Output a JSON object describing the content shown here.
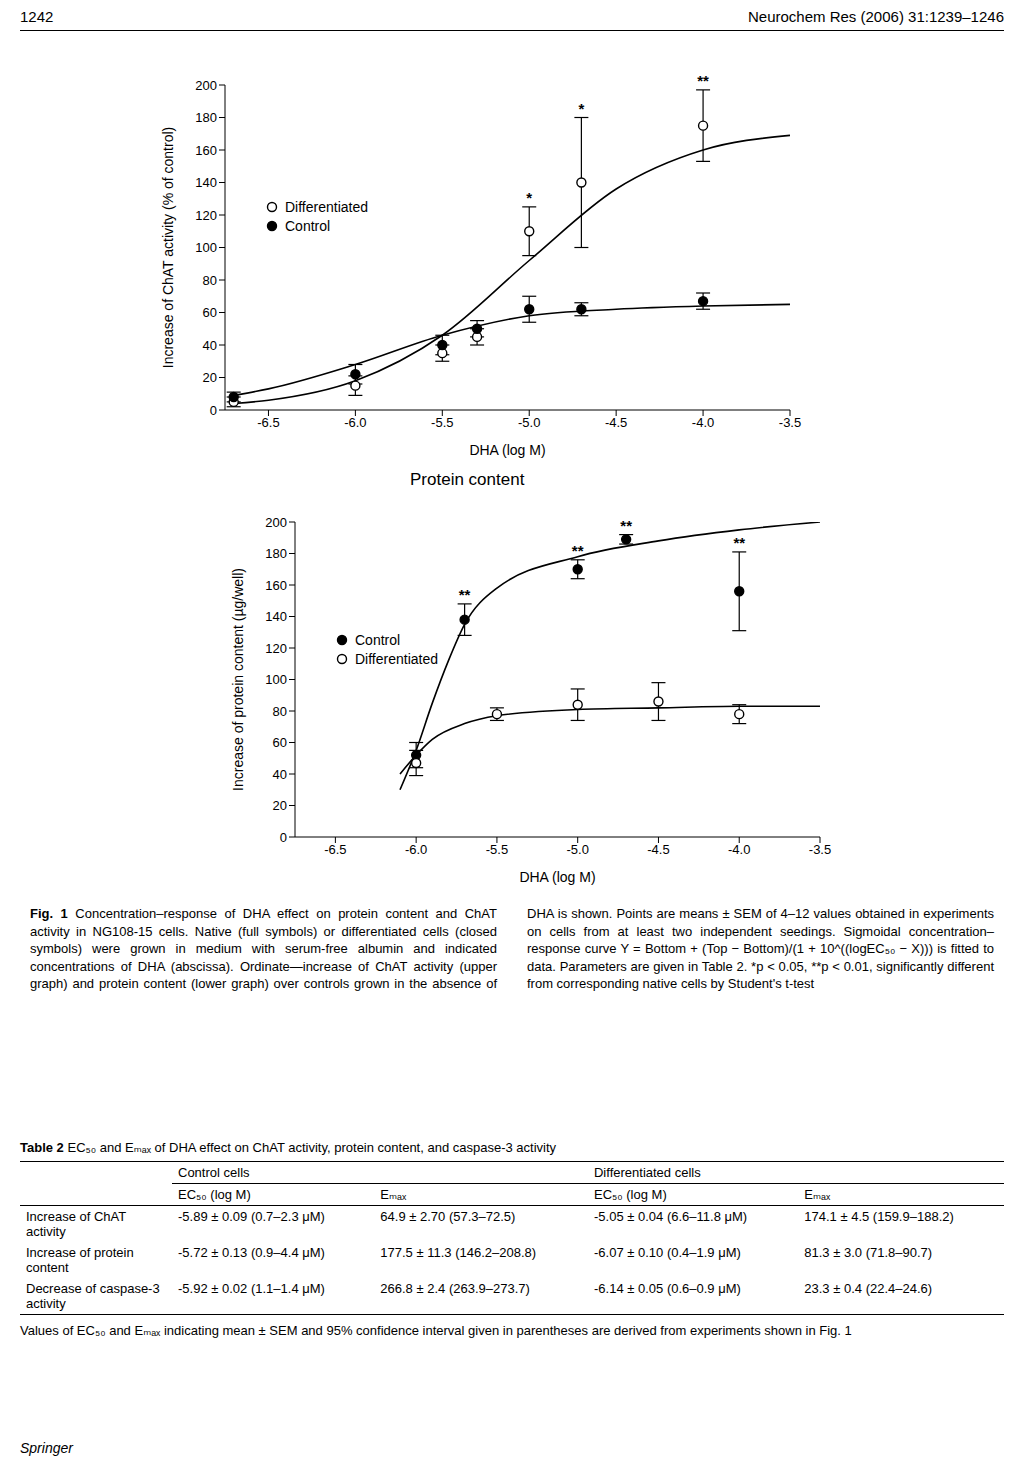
{
  "header": {
    "page": "1242",
    "journal": "Neurochem Res (2006) 31:1239–1246"
  },
  "chart_data": [
    {
      "type": "scatter",
      "y_label": "Increase of ChAT activity (% of control)",
      "x_label": "DHA (log M)",
      "xlim": [
        -6.75,
        -3.5
      ],
      "xticks": [
        -6.5,
        {
          "value": -6,
          "label": "-6.0"
        },
        -5.5,
        {
          "value": -5,
          "label": "-5.0"
        },
        -4.5,
        {
          "value": -4,
          "label": "-4.0"
        },
        -3.5
      ],
      "ylim": [
        0,
        200
      ],
      "yticks": [
        0,
        20,
        40,
        60,
        80,
        100,
        120,
        140,
        160,
        180,
        200
      ],
      "legend": "center left",
      "series": [
        {
          "name": "Differentiated",
          "type": "scatter",
          "color": "#000000",
          "marker": "open_circle",
          "x": [
            -6.7,
            -6.0,
            -5.5,
            -5.3,
            -5.0,
            -4.7,
            -4.0
          ],
          "values": [
            5,
            15,
            35,
            45,
            110,
            140,
            175
          ],
          "errors": [
            3,
            6,
            5,
            5,
            15,
            40,
            22
          ],
          "significance": [
            null,
            null,
            null,
            null,
            "*",
            "*",
            "**"
          ]
        },
        {
          "name": "Control",
          "type": "scatter",
          "color": "#000000",
          "marker": "filled_circle",
          "x": [
            -6.7,
            -6.0,
            -5.5,
            -5.3,
            -5.0,
            -4.7,
            -4.0
          ],
          "values": [
            8,
            22,
            40,
            50,
            62,
            62,
            67
          ],
          "errors": [
            3,
            6,
            6,
            5,
            8,
            4,
            5
          ]
        },
        {
          "type": "line",
          "color": "#000000",
          "marker": "none",
          "line_style": "solid",
          "x": [
            -6.7,
            -6.5,
            -6.0,
            -5.5,
            -5.0,
            -4.5,
            -4.0,
            -3.5
          ],
          "values": [
            4,
            6,
            18,
            46,
            92,
            136,
            160,
            169
          ]
        },
        {
          "type": "line",
          "color": "#000000",
          "marker": "none",
          "line_style": "solid",
          "x": [
            -6.7,
            -6.5,
            -6.0,
            -5.5,
            -5.0,
            -4.5,
            -4.0,
            -3.5
          ],
          "values": [
            9,
            13,
            28,
            46,
            58,
            62,
            64,
            65
          ]
        }
      ]
    },
    {
      "type": "scatter",
      "title": "Protein content",
      "y_label": "Increase of protein content (µg/well)",
      "x_label": "DHA (log M)",
      "xlim": [
        -6.75,
        -3.5
      ],
      "xticks": [
        -6.5,
        {
          "value": -6,
          "label": "-6.0"
        },
        -5.5,
        {
          "value": -5,
          "label": "-5.0"
        },
        -4.5,
        {
          "value": -4,
          "label": "-4.0"
        },
        -3.5
      ],
      "ylim": [
        0,
        200
      ],
      "yticks": [
        0,
        20,
        40,
        60,
        80,
        100,
        120,
        140,
        160,
        180,
        200
      ],
      "legend": "center left",
      "series": [
        {
          "name": "Control",
          "type": "scatter",
          "color": "#000000",
          "marker": "filled_circle",
          "x": [
            -6.0,
            -5.7,
            -5.0,
            -4.7,
            -4.0
          ],
          "values": [
            52,
            138,
            170,
            189,
            156
          ],
          "errors": [
            8,
            10,
            6,
            3,
            25
          ],
          "significance": [
            null,
            "**",
            "**",
            "**",
            "**"
          ]
        },
        {
          "name": "Differentiated",
          "type": "scatter",
          "color": "#000000",
          "marker": "open_circle",
          "x": [
            -6.0,
            -5.5,
            -5.0,
            -4.5,
            -4.0
          ],
          "values": [
            47,
            78,
            84,
            86,
            78
          ],
          "errors": [
            8,
            4,
            10,
            12,
            6
          ]
        },
        {
          "type": "line",
          "color": "#000000",
          "marker": "none",
          "line_style": "solid",
          "x": [
            -6.1,
            -6.0,
            -5.9,
            -5.8,
            -5.7,
            -5.5,
            -5.0,
            -4.5,
            -4.0,
            -3.5
          ],
          "values": [
            30,
            55,
            85,
            112,
            135,
            158,
            178,
            188,
            195,
            200
          ]
        },
        {
          "type": "line",
          "color": "#000000",
          "marker": "none",
          "line_style": "solid",
          "x": [
            -6.1,
            -6.0,
            -5.9,
            -5.7,
            -5.5,
            -5.0,
            -4.5,
            -4.0,
            -3.5
          ],
          "values": [
            40,
            52,
            62,
            72,
            77,
            81,
            82,
            83,
            83
          ]
        }
      ]
    }
  ],
  "caption": {
    "label": "Fig. 1",
    "text": "Concentration–response of DHA effect on protein content and ChAT activity in NG108-15 cells. Native (full symbols) or differentiated cells (closed symbols) were grown in medium with serum-free albumin and indicated concentrations of DHA (abscissa). Ordinate—increase of ChAT activity (upper graph) and protein content (lower graph) over controls grown in the absence of DHA is shown. Points are means ± SEM of 4–12 values obtained in experiments on cells from at least two independent seedings. Sigmoidal concentration–response curve Y = Bottom + (Top − Bottom)/(1 + 10^((logEC₅₀ − X))) is fitted to data. Parameters are given in Table 2. *p < 0.05, **p < 0.01, significantly different from corresponding native cells by Student's t-test"
  },
  "table": {
    "label": "Table 2",
    "title": "EC₅₀ and Eₘₐₓ of DHA effect on ChAT activity, protein content, and caspase-3 activity",
    "column_groups": [
      "Control cells",
      "Differentiated cells"
    ],
    "columns": [
      "EC₅₀ (log M)",
      "Eₘₐₓ",
      "EC₅₀ (log M)",
      "Eₘₐₓ"
    ],
    "rows": [
      {
        "label": "Increase of ChAT activity",
        "cells": [
          "-5.89 ± 0.09 (0.7–2.3 μM)",
          "64.9 ± 2.70 (57.3–72.5)",
          "-5.05 ± 0.04 (6.6–11.8 μM)",
          "174.1 ± 4.5 (159.9–188.2)"
        ]
      },
      {
        "label": "Increase of protein content",
        "cells": [
          "-5.72 ± 0.13 (0.9–4.4 μM)",
          "177.5 ± 11.3 (146.2–208.8)",
          "-6.07 ± 0.10 (0.4–1.9 μM)",
          "81.3 ± 3.0 (71.8–90.7)"
        ]
      },
      {
        "label": "Decrease of caspase-3 activity",
        "cells": [
          "-5.92 ± 0.02 (1.1–1.4 μM)",
          "266.8 ± 2.4 (263.9–273.7)",
          "-6.14 ± 0.05 (0.6–0.9 μM)",
          "23.3 ± 0.4 (22.4–24.6)"
        ]
      }
    ],
    "note": "Values of EC₅₀ and Eₘₐₓ indicating mean ± SEM and 95% confidence interval given in parentheses are derived from experiments shown in Fig. 1"
  },
  "footer": "Springer"
}
